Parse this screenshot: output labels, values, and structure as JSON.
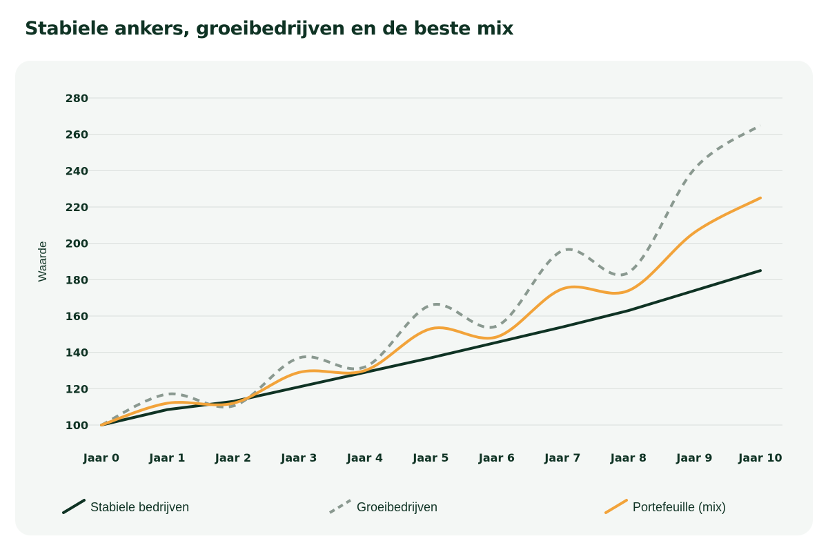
{
  "title": "Stabiele ankers, groeibedrijven en de beste mix",
  "chart_data": {
    "type": "line",
    "title": "Stabiele ankers, groeibedrijven en de beste mix",
    "xlabel": "",
    "ylabel": "Waarde",
    "categories": [
      "Jaar 0",
      "Jaar 1",
      "Jaar 2",
      "Jaar 3",
      "Jaar 4",
      "Jaar 5",
      "Jaar 6",
      "Jaar 7",
      "Jaar 8",
      "Jaar 9",
      "Jaar 10"
    ],
    "ylim": [
      100,
      280
    ],
    "yticks": [
      100,
      120,
      140,
      160,
      180,
      200,
      220,
      240,
      260,
      280
    ],
    "grid": true,
    "legend_position": "bottom",
    "series": [
      {
        "name": "Stabiele bedrijven",
        "color": "#0f3324",
        "style": "solid",
        "values": [
          100,
          108.5,
          113,
          121,
          129,
          137,
          145.5,
          154,
          163,
          174,
          185
        ]
      },
      {
        "name": "Groeibedrijven",
        "color": "#8a9990",
        "style": "dashed",
        "values": [
          100,
          117,
          110.5,
          137,
          132,
          166,
          154.5,
          196,
          184,
          241,
          265
        ]
      },
      {
        "name": "Portefeuille (mix)",
        "color": "#f2a33a",
        "style": "solid",
        "values": [
          100,
          112,
          112,
          129,
          130,
          153,
          148.5,
          175,
          174,
          206,
          225
        ]
      }
    ]
  }
}
